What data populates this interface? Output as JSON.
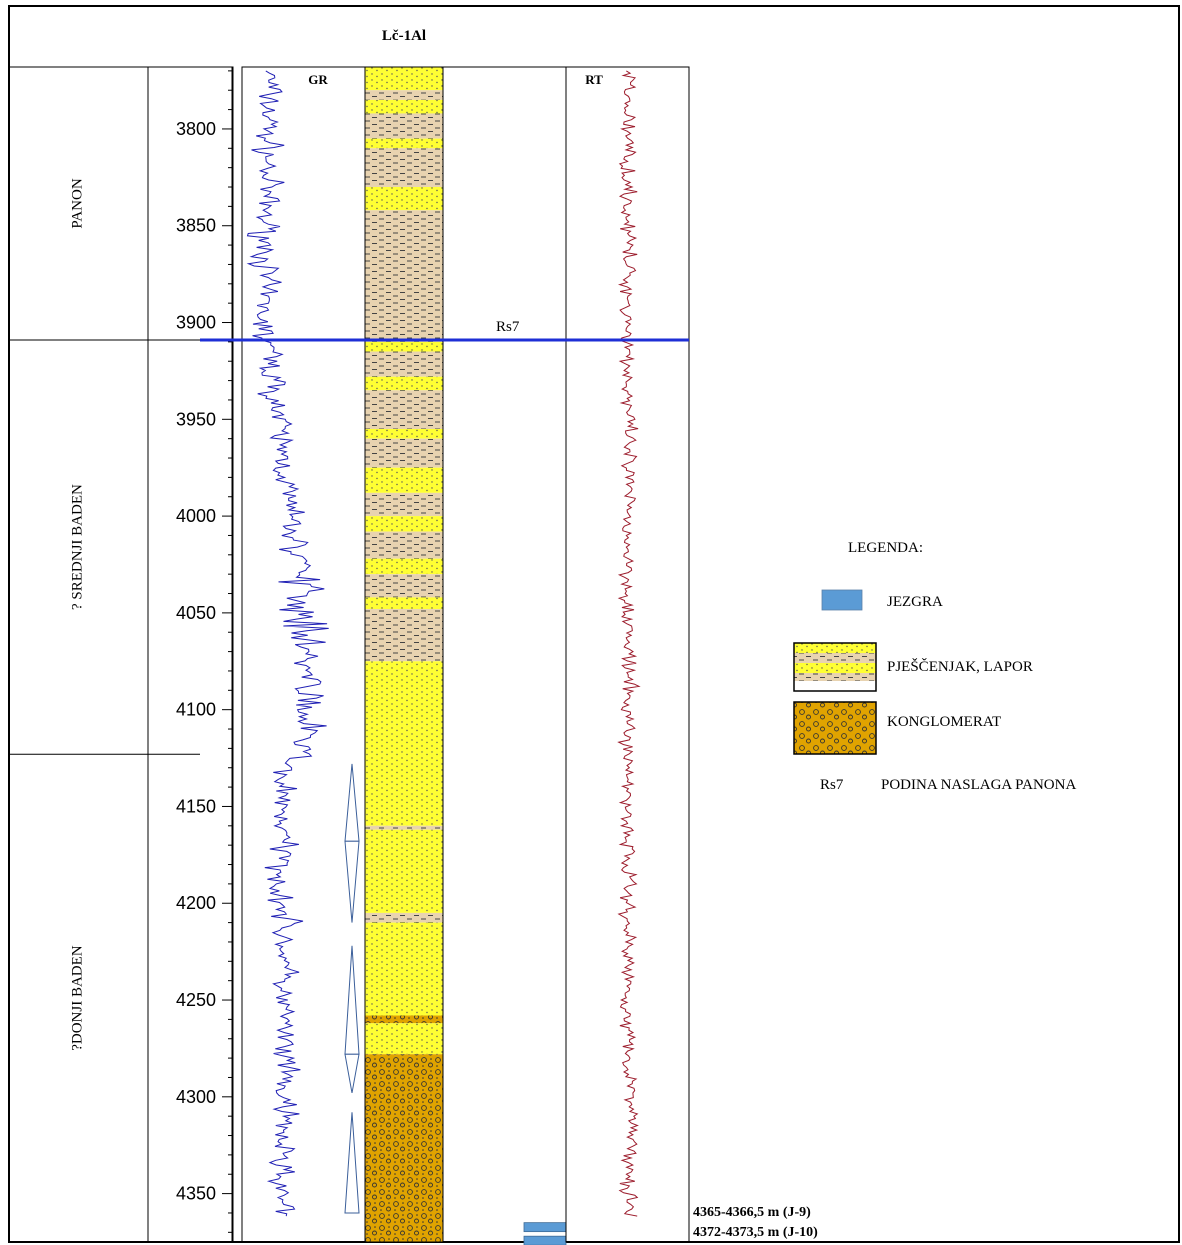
{
  "well_title": "Lč-1Al",
  "curves": {
    "gr_label": "GR",
    "rt_label": "RT",
    "gr_color": "#1f1fb4",
    "rt_color": "#9c1c2c"
  },
  "depth_axis": {
    "range": [
      3768,
      4375
    ],
    "ticks": [
      "3800",
      "3850",
      "3900",
      "3950",
      "4000",
      "4050",
      "4100",
      "4150",
      "4200",
      "4250",
      "4300",
      "4350"
    ]
  },
  "zones": [
    {
      "name": "PANON",
      "top": 3768,
      "base": 3909
    },
    {
      "name": "? SREDNJI BADEN",
      "top": 3909,
      "base": 4123
    },
    {
      "name": "?DONJI BADEN",
      "top": 4123,
      "base": 4375
    }
  ],
  "marker": {
    "label": "Rs7",
    "depth": 3909,
    "color": "#1e2fd6"
  },
  "lithology": {
    "colors": {
      "sand": "#ffff33",
      "marl": "#e8d3b0",
      "conglomerate": "#e0a300"
    },
    "intervals": [
      {
        "top": 3768,
        "base": 3780,
        "type": "sand"
      },
      {
        "top": 3780,
        "base": 3785,
        "type": "marl"
      },
      {
        "top": 3785,
        "base": 3792,
        "type": "sand"
      },
      {
        "top": 3792,
        "base": 3805,
        "type": "marl"
      },
      {
        "top": 3805,
        "base": 3810,
        "type": "sand"
      },
      {
        "top": 3810,
        "base": 3830,
        "type": "marl"
      },
      {
        "top": 3830,
        "base": 3842,
        "type": "sand"
      },
      {
        "top": 3842,
        "base": 3910,
        "type": "marl"
      },
      {
        "top": 3910,
        "base": 3915,
        "type": "sand"
      },
      {
        "top": 3915,
        "base": 3928,
        "type": "marl"
      },
      {
        "top": 3928,
        "base": 3935,
        "type": "sand"
      },
      {
        "top": 3935,
        "base": 3955,
        "type": "marl"
      },
      {
        "top": 3955,
        "base": 3960,
        "type": "sand"
      },
      {
        "top": 3960,
        "base": 3975,
        "type": "marl"
      },
      {
        "top": 3975,
        "base": 3988,
        "type": "sand"
      },
      {
        "top": 3988,
        "base": 4000,
        "type": "marl"
      },
      {
        "top": 4000,
        "base": 4008,
        "type": "sand"
      },
      {
        "top": 4008,
        "base": 4022,
        "type": "marl"
      },
      {
        "top": 4022,
        "base": 4030,
        "type": "sand"
      },
      {
        "top": 4030,
        "base": 4042,
        "type": "marl"
      },
      {
        "top": 4042,
        "base": 4048,
        "type": "sand"
      },
      {
        "top": 4048,
        "base": 4075,
        "type": "marl"
      },
      {
        "top": 4075,
        "base": 4160,
        "type": "sand"
      },
      {
        "top": 4160,
        "base": 4162,
        "type": "marl"
      },
      {
        "top": 4162,
        "base": 4205,
        "type": "sand"
      },
      {
        "top": 4205,
        "base": 4210,
        "type": "marl"
      },
      {
        "top": 4210,
        "base": 4258,
        "type": "sand"
      },
      {
        "top": 4258,
        "base": 4262,
        "type": "conglomerate"
      },
      {
        "top": 4262,
        "base": 4278,
        "type": "sand"
      },
      {
        "top": 4278,
        "base": 4375,
        "type": "conglomerate"
      }
    ]
  },
  "sequence_triangles": [
    {
      "top": 4128,
      "base": 4168,
      "direction": "up"
    },
    {
      "top": 4168,
      "base": 4210,
      "direction": "down"
    },
    {
      "top": 4222,
      "base": 4278,
      "direction": "up"
    },
    {
      "top": 4278,
      "base": 4298,
      "direction": "down"
    },
    {
      "top": 4308,
      "base": 4360,
      "direction": "up"
    }
  ],
  "cores": [
    {
      "top": 4365,
      "base": 4366.5,
      "label": "4365-4366,5 m (J-9)"
    },
    {
      "top": 4372,
      "base": 4373.5,
      "label": "4372-4373,5 m (J-10)"
    }
  ],
  "legend": {
    "title": "LEGENDA:",
    "items": [
      {
        "key": "core",
        "label": "JEZGRA",
        "color": "#5b9bd5"
      },
      {
        "key": "sand_marl",
        "label": "PJEŠČENJAK, LAPOR"
      },
      {
        "key": "conglomerate",
        "label": "KONGLOMERAT"
      },
      {
        "key": "marker",
        "symbol": "Rs7",
        "label": "PODINA NASLAGA PANONA"
      }
    ]
  }
}
